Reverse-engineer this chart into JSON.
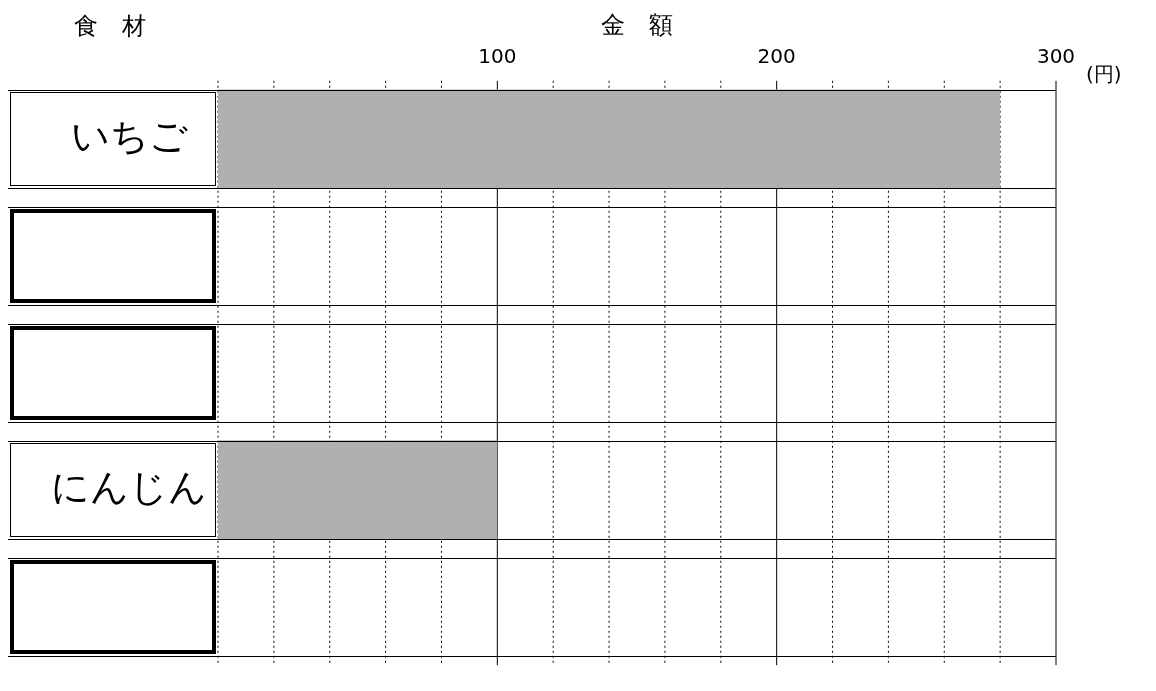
{
  "chart_data": {
    "type": "bar",
    "orientation": "horizontal",
    "xlabel": "金　額",
    "ylabel": "食　材",
    "categories": [
      "いちご",
      null,
      null,
      "にんじん",
      null
    ],
    "values": [
      280,
      null,
      null,
      100,
      null
    ],
    "color": "#b0b0b0",
    "xlim": [
      0,
      300
    ],
    "xticks": [
      {
        "value": 0,
        "label": null
      },
      {
        "value": 20,
        "label": null
      },
      {
        "value": 40,
        "label": null
      },
      {
        "value": 60,
        "label": null
      },
      {
        "value": 80,
        "label": null
      },
      100,
      {
        "value": 120,
        "label": null
      },
      {
        "value": 140,
        "label": null
      },
      {
        "value": 160,
        "label": null
      },
      {
        "value": 180,
        "label": null
      },
      200,
      {
        "value": 220,
        "label": null
      },
      {
        "value": 240,
        "label": null
      },
      {
        "value": 260,
        "label": null
      },
      {
        "value": 280,
        "label": null
      },
      300
    ],
    "grid": "x",
    "legend": false,
    "annotations": [
      "(円)"
    ]
  }
}
